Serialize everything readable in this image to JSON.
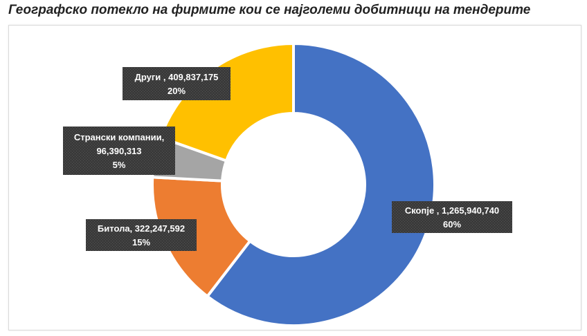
{
  "title": "Географско потекло на фирмите кои се најголеми добитници на тендерите",
  "chart_data": {
    "type": "pie",
    "variant": "doughnut",
    "title": "Географско потекло на фирмите кои се најголеми добитници на тендерите",
    "legend": "none",
    "slices": [
      {
        "name": "Скопје",
        "value": 1265940740,
        "value_label": "1,265,940,740",
        "percent": "60%",
        "color": "#4472C4"
      },
      {
        "name": "Битола",
        "value": 322247592,
        "value_label": "322,247,592",
        "percent": "15%",
        "color": "#ED7D31"
      },
      {
        "name": "Странски компании,",
        "value": 96390313,
        "value_label": "96,390,313",
        "percent": "5%",
        "color": "#A5A5A5"
      },
      {
        "name": "Други",
        "value": 409837175,
        "value_label": "409,837,175",
        "percent": "20%",
        "color": "#FFC000"
      }
    ],
    "data_labels": [
      [
        "Скопје , 1,265,940,740",
        "60%"
      ],
      [
        "Битола, 322,247,592",
        "15%"
      ],
      [
        "Странски компании,",
        "96,390,313",
        "5%"
      ],
      [
        "Други , 409,837,175",
        "20%"
      ]
    ]
  }
}
